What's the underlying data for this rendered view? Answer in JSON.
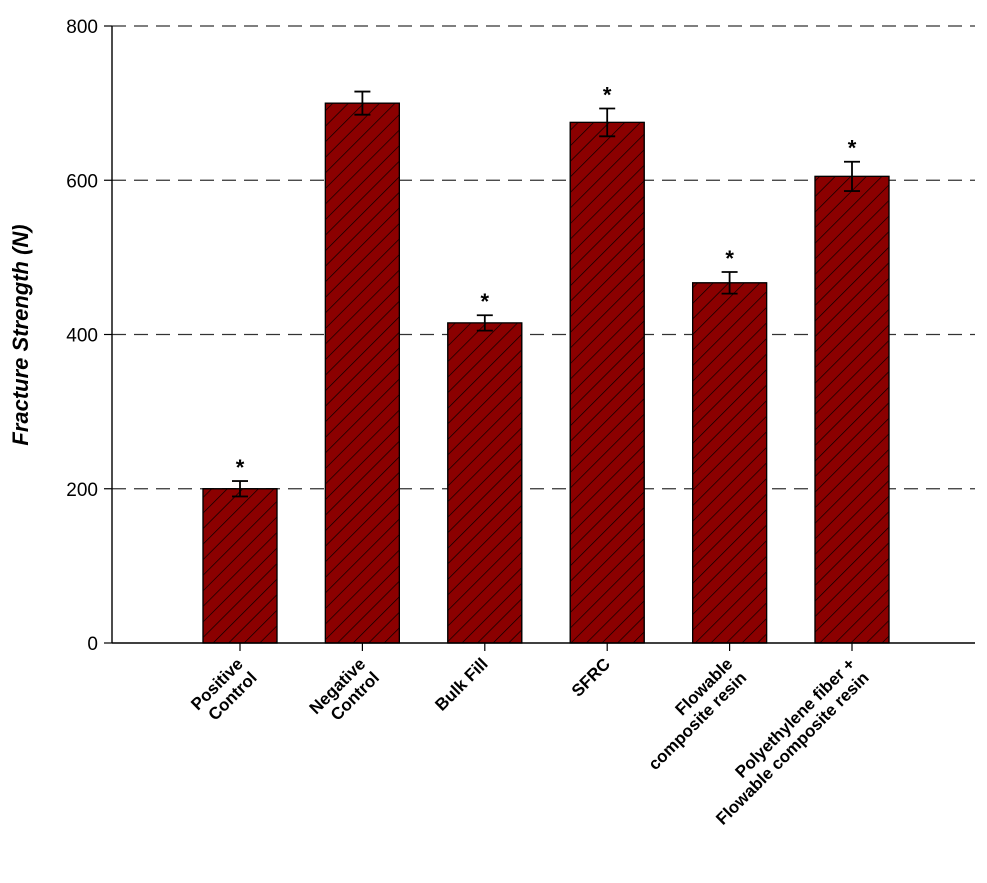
{
  "chart_data": {
    "type": "bar",
    "y_label": "Fracture Strength (N)",
    "categories": [
      "Positive\nControl",
      "Negative\nControl",
      "Bulk Fill",
      "SFRC",
      "Flowable\ncomposite resin",
      "Polyethylene fiber +\nFlowable composite resin"
    ],
    "values": [
      200,
      700,
      415,
      675,
      467,
      605
    ],
    "errors": [
      10,
      15,
      10,
      18,
      14,
      19
    ],
    "markers": [
      "*",
      null,
      "*",
      "*",
      "*",
      "*"
    ],
    "color": "#8b0000",
    "ylim": [
      0,
      800
    ],
    "yticks": [
      0,
      200,
      400,
      600,
      800
    ],
    "grid": true
  }
}
